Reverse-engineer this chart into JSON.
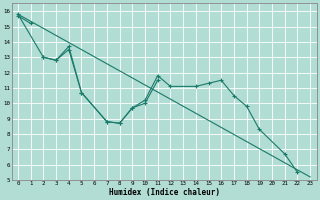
{
  "title": "",
  "xlabel": "Humidex (Indice chaleur)",
  "bg_color": "#b2ddd4",
  "grid_color": "#ffffff",
  "line_color": "#1a7a6a",
  "xlim": [
    -0.5,
    23.5
  ],
  "ylim": [
    5,
    16.5
  ],
  "xticks": [
    0,
    1,
    2,
    3,
    4,
    5,
    6,
    7,
    8,
    9,
    10,
    11,
    12,
    13,
    14,
    15,
    16,
    17,
    18,
    19,
    20,
    21,
    22,
    23
  ],
  "yticks": [
    5,
    6,
    7,
    8,
    9,
    10,
    11,
    12,
    13,
    14,
    15,
    16
  ],
  "series": [
    {
      "x": [
        0,
        23
      ],
      "y": [
        15.8,
        5.2
      ],
      "marker": false
    },
    {
      "x": [
        0,
        1
      ],
      "y": [
        15.7,
        15.2
      ],
      "marker": true
    },
    {
      "x": [
        0,
        2,
        3,
        4,
        5,
        7,
        8,
        9,
        10,
        11,
        12,
        14,
        15,
        16,
        17,
        18,
        19,
        21,
        22
      ],
      "y": [
        15.8,
        13.0,
        12.8,
        13.7,
        10.7,
        8.8,
        8.7,
        9.7,
        10.2,
        11.8,
        11.1,
        11.1,
        11.3,
        11.5,
        10.5,
        9.8,
        8.3,
        6.7,
        5.5
      ],
      "marker": true
    },
    {
      "x": [
        2,
        3,
        4,
        5,
        7,
        8,
        9,
        10,
        11
      ],
      "y": [
        13.0,
        12.8,
        13.5,
        10.7,
        8.8,
        8.7,
        9.7,
        10.0,
        11.5
      ],
      "marker": true
    }
  ]
}
